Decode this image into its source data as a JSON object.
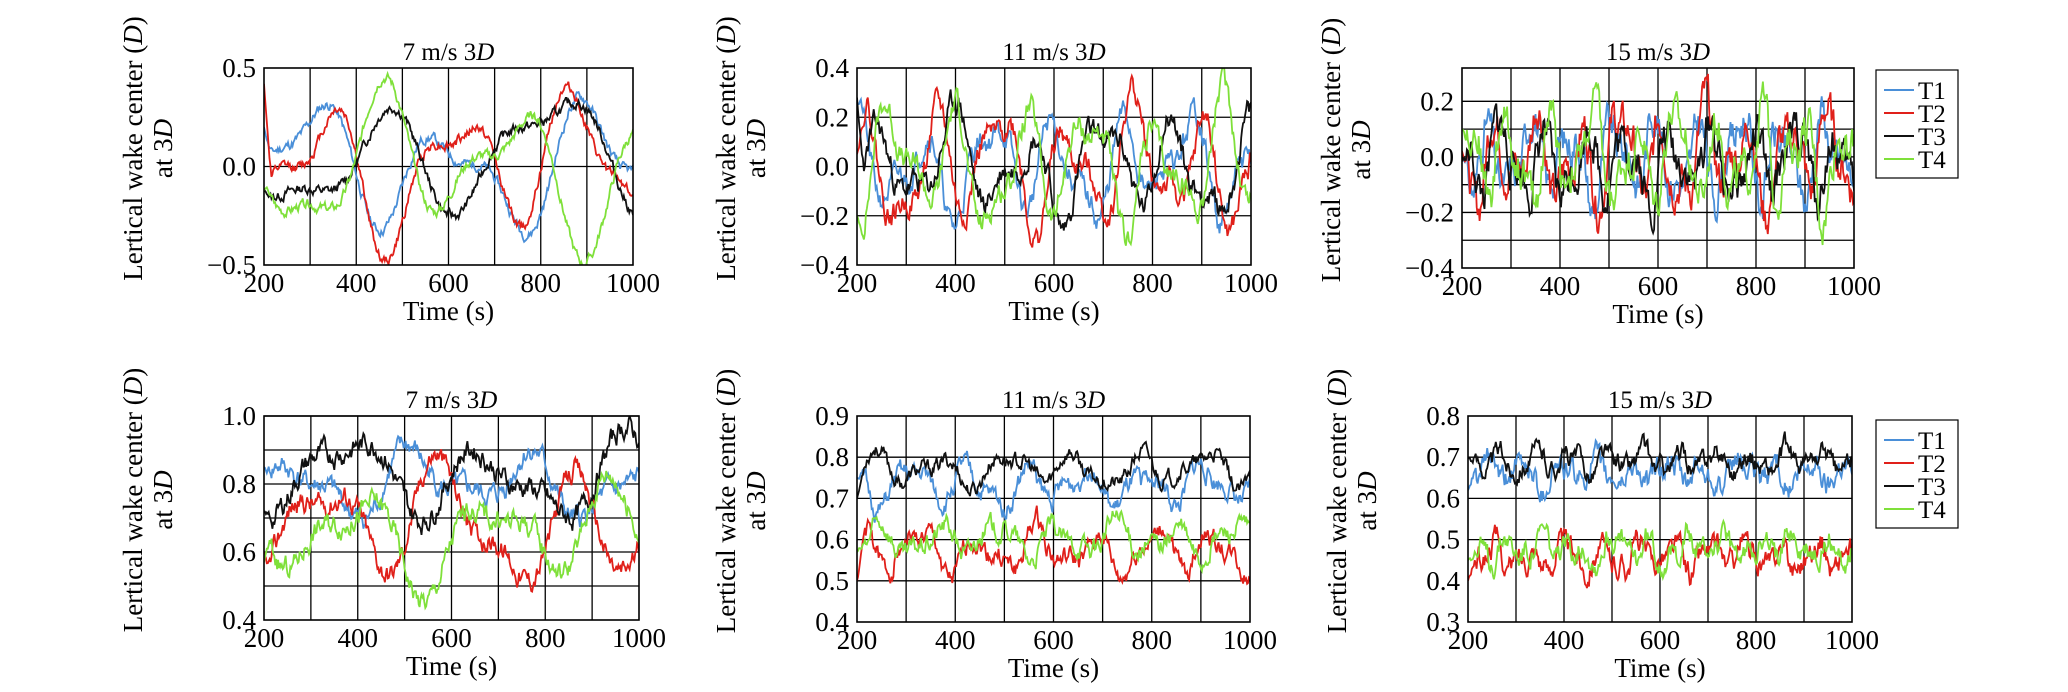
{
  "series_colors": {
    "T1": "#4a8fd8",
    "T2": "#e0201a",
    "T3": "#111111",
    "T4": "#7fe03a"
  },
  "legend": {
    "top": [
      "T1",
      "T2",
      "T3",
      "T4"
    ],
    "bottom": [
      "T1",
      "T2",
      "T3",
      "T4"
    ]
  },
  "chart_data": [
    {
      "type": "line",
      "title": "7 m/s 3",
      "title_italic": "D",
      "xlabel": "Time (s)",
      "ylabel_line1": "Lertical wake center (",
      "ylabel_italic": "D",
      "ylabel_line1_end": ")",
      "ylabel_line2": "at 3",
      "ylabel_line2_italic": "D",
      "xlim": [
        200,
        1000
      ],
      "ylim": [
        -0.5,
        0.5
      ],
      "xticks": [
        200,
        400,
        600,
        800,
        1000
      ],
      "yticks": [
        -0.5,
        0.0,
        0.5
      ],
      "ytick_labels": [
        "−0.5",
        "0.0",
        "0.5"
      ],
      "hgrid": [
        0.0
      ],
      "vgrid": [
        300,
        400,
        500,
        600,
        700,
        800,
        900
      ],
      "series": [
        {
          "name": "T1",
          "mean": 0.0,
          "amp": 0.38,
          "seed": 11,
          "freq": 0.01,
          "noise": 0.02,
          "start": 0.2
        },
        {
          "name": "T2",
          "mean": 0.0,
          "amp": 0.45,
          "seed": 12,
          "freq": 0.011,
          "noise": 0.02,
          "start": 0.42
        },
        {
          "name": "T3",
          "mean": 0.05,
          "amp": 0.38,
          "seed": 13,
          "freq": 0.008,
          "noise": 0.02,
          "start": -0.12
        },
        {
          "name": "T4",
          "mean": 0.0,
          "amp": 0.45,
          "seed": 14,
          "freq": 0.01,
          "noise": 0.02,
          "start": -0.12
        }
      ]
    },
    {
      "type": "line",
      "title": "11 m/s 3",
      "title_italic": "D",
      "xlabel": "Time (s)",
      "ylabel_line1": "Lertical wake center (",
      "ylabel_italic": "D",
      "ylabel_line1_end": ")",
      "ylabel_line2": "at 3",
      "ylabel_line2_italic": "D",
      "xlim": [
        200,
        1000
      ],
      "ylim": [
        -0.4,
        0.4
      ],
      "xticks": [
        200,
        400,
        600,
        800,
        1000
      ],
      "yticks": [
        -0.4,
        -0.2,
        0.0,
        0.2,
        0.4
      ],
      "ytick_labels": [
        "−0.4",
        "−0.2",
        "0.0",
        "0.2",
        "0.4"
      ],
      "hgrid": [
        -0.2,
        0.0,
        0.2
      ],
      "vgrid": [
        300,
        400,
        500,
        600,
        700,
        800,
        900
      ],
      "series": [
        {
          "name": "T1",
          "mean": 0.0,
          "amp": 0.25,
          "seed": 21,
          "freq": 0.022,
          "noise": 0.04,
          "start": 0.25
        },
        {
          "name": "T2",
          "mean": 0.0,
          "amp": 0.3,
          "seed": 22,
          "freq": 0.022,
          "noise": 0.04,
          "start": 0.05
        },
        {
          "name": "T3",
          "mean": 0.0,
          "amp": 0.25,
          "seed": 23,
          "freq": 0.02,
          "noise": 0.04,
          "start": 0.28
        },
        {
          "name": "T4",
          "mean": 0.0,
          "amp": 0.3,
          "seed": 24,
          "freq": 0.022,
          "noise": 0.04,
          "start": -0.2
        }
      ]
    },
    {
      "type": "line",
      "title": "15 m/s 3",
      "title_italic": "D",
      "xlabel": "Time (s)",
      "ylabel_line1": "Lertical wake center (",
      "ylabel_italic": "D",
      "ylabel_line1_end": ")",
      "ylabel_line2": "at 3",
      "ylabel_line2_italic": "D",
      "xlim": [
        200,
        1000
      ],
      "ylim": [
        -0.4,
        0.32
      ],
      "xticks": [
        200,
        400,
        600,
        800,
        1000
      ],
      "yticks": [
        -0.4,
        -0.2,
        0.0,
        0.2
      ],
      "ytick_labels": [
        "−0.4",
        "−0.2",
        "0.0",
        "0.2"
      ],
      "hgrid": [
        -0.3,
        -0.2,
        -0.1,
        0.0,
        0.1,
        0.2
      ],
      "vgrid": [
        300,
        400,
        500,
        600,
        700,
        800,
        900
      ],
      "series": [
        {
          "name": "T1",
          "mean": 0.0,
          "amp": 0.18,
          "seed": 31,
          "freq": 0.035,
          "noise": 0.06,
          "start": 0.0
        },
        {
          "name": "T2",
          "mean": 0.0,
          "amp": 0.2,
          "seed": 32,
          "freq": 0.035,
          "noise": 0.06,
          "start": 0.02
        },
        {
          "name": "T3",
          "mean": -0.02,
          "amp": 0.15,
          "seed": 33,
          "freq": 0.035,
          "noise": 0.06,
          "start": 0.0
        },
        {
          "name": "T4",
          "mean": 0.0,
          "amp": 0.2,
          "seed": 34,
          "freq": 0.035,
          "noise": 0.06,
          "start": 0.1
        }
      ]
    },
    {
      "type": "line",
      "title": "7 m/s 3",
      "title_italic": "D",
      "xlabel": "Time (s)",
      "ylabel_line1": "Lertical wake center (",
      "ylabel_italic": "D",
      "ylabel_line1_end": ")",
      "ylabel_line2": "at 3",
      "ylabel_line2_italic": "D",
      "xlim": [
        200,
        1000
      ],
      "ylim": [
        0.4,
        1.0
      ],
      "xticks": [
        200,
        400,
        600,
        800,
        1000
      ],
      "yticks": [
        0.4,
        0.6,
        0.8,
        1.0
      ],
      "ytick_labels": [
        "0.4",
        "0.6",
        "0.8",
        "1.0"
      ],
      "hgrid": [
        0.5,
        0.6,
        0.7,
        0.8,
        0.9,
        1.0
      ],
      "vgrid": [
        300,
        400,
        500,
        600,
        700,
        800,
        900
      ],
      "series": [
        {
          "name": "T1",
          "mean": 0.8,
          "amp": 0.12,
          "seed": 41,
          "freq": 0.012,
          "noise": 0.025,
          "start": 0.85
        },
        {
          "name": "T2",
          "mean": 0.68,
          "amp": 0.22,
          "seed": 42,
          "freq": 0.011,
          "noise": 0.025,
          "start": 0.6
        },
        {
          "name": "T3",
          "mean": 0.82,
          "amp": 0.15,
          "seed": 43,
          "freq": 0.01,
          "noise": 0.025,
          "start": 0.72
        },
        {
          "name": "T4",
          "mean": 0.65,
          "amp": 0.18,
          "seed": 44,
          "freq": 0.011,
          "noise": 0.025,
          "start": 0.57
        }
      ]
    },
    {
      "type": "line",
      "title": "11 m/s 3",
      "title_italic": "D",
      "xlabel": "Time (s)",
      "ylabel_line1": "Lertical wake center (",
      "ylabel_italic": "D",
      "ylabel_line1_end": ")",
      "ylabel_line2": "at 3",
      "ylabel_line2_italic": "D",
      "xlim": [
        200,
        1000
      ],
      "ylim": [
        0.4,
        0.9
      ],
      "xticks": [
        200,
        400,
        600,
        800,
        1000
      ],
      "yticks": [
        0.4,
        0.5,
        0.6,
        0.7,
        0.8,
        0.9
      ],
      "ytick_labels": [
        "0.4",
        "0.5",
        "0.6",
        "0.7",
        "0.8",
        "0.9"
      ],
      "hgrid": [
        0.5,
        0.6,
        0.7,
        0.8
      ],
      "vgrid": [
        300,
        400,
        500,
        600,
        700,
        800,
        900
      ],
      "series": [
        {
          "name": "T1",
          "mean": 0.73,
          "amp": 0.06,
          "seed": 51,
          "freq": 0.025,
          "noise": 0.02,
          "start": 0.75
        },
        {
          "name": "T2",
          "mean": 0.57,
          "amp": 0.07,
          "seed": 52,
          "freq": 0.025,
          "noise": 0.02,
          "start": 0.5
        },
        {
          "name": "T3",
          "mean": 0.77,
          "amp": 0.05,
          "seed": 53,
          "freq": 0.022,
          "noise": 0.015,
          "start": 0.7
        },
        {
          "name": "T4",
          "mean": 0.6,
          "amp": 0.05,
          "seed": 54,
          "freq": 0.025,
          "noise": 0.02,
          "start": 0.57
        }
      ]
    },
    {
      "type": "line",
      "title": "15 m/s 3",
      "title_italic": "D",
      "xlabel": "Time (s)",
      "ylabel_line1": "Lertical wake center (",
      "ylabel_italic": "D",
      "ylabel_line1_end": ")",
      "ylabel_line2": "at 3",
      "ylabel_line2_italic": "D",
      "xlim": [
        200,
        1000
      ],
      "ylim": [
        0.3,
        0.8
      ],
      "xticks": [
        200,
        400,
        600,
        800,
        1000
      ],
      "yticks": [
        0.3,
        0.4,
        0.5,
        0.6,
        0.7,
        0.8
      ],
      "ytick_labels": [
        "0.3",
        "0.4",
        "0.5",
        "0.6",
        "0.7",
        "0.8"
      ],
      "hgrid": [
        0.5,
        0.6,
        0.7
      ],
      "vgrid": [
        300,
        400,
        500,
        600,
        700,
        800,
        900
      ],
      "series": [
        {
          "name": "T1",
          "mean": 0.66,
          "amp": 0.04,
          "seed": 61,
          "freq": 0.04,
          "noise": 0.025,
          "start": 0.62
        },
        {
          "name": "T2",
          "mean": 0.46,
          "amp": 0.04,
          "seed": 62,
          "freq": 0.04,
          "noise": 0.025,
          "start": 0.4
        },
        {
          "name": "T3",
          "mean": 0.69,
          "amp": 0.03,
          "seed": 63,
          "freq": 0.04,
          "noise": 0.02,
          "start": 0.7
        },
        {
          "name": "T4",
          "mean": 0.48,
          "amp": 0.04,
          "seed": 64,
          "freq": 0.04,
          "noise": 0.025,
          "start": 0.45
        }
      ]
    }
  ]
}
